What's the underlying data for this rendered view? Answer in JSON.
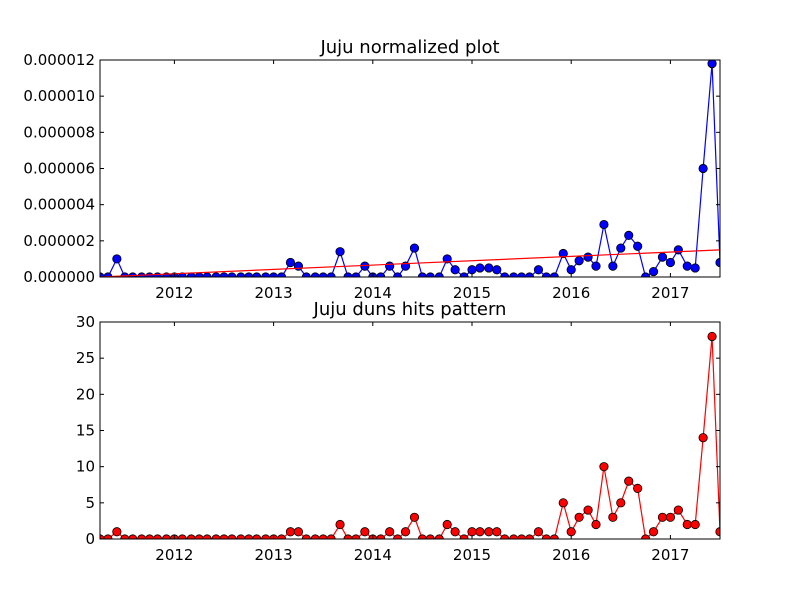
{
  "chart_data": [
    {
      "type": "line",
      "title": "Juju normalized plot",
      "xlabel": "",
      "ylabel": "",
      "xlim": [
        2011.25,
        2017.5
      ],
      "ylim": [
        0,
        1.2e-05
      ],
      "x_ticks": [
        2012,
        2013,
        2014,
        2015,
        2016,
        2017
      ],
      "y_ticks": [
        0,
        2e-06,
        4e-06,
        6e-06,
        8e-06,
        1e-05,
        1.2e-05
      ],
      "x_tick_labels": [
        "2012",
        "2013",
        "2014",
        "2015",
        "2016",
        "2017"
      ],
      "y_tick_labels": [
        "0.000000",
        "0.000002",
        "0.000004",
        "0.000006",
        "0.000008",
        "0.000010",
        "0.000012"
      ],
      "grid": false,
      "series": [
        {
          "color": "#0000ff",
          "marker": "circle",
          "x": [
            2011.25,
            2011.33,
            2011.42,
            2011.5,
            2011.58,
            2011.67,
            2011.75,
            2011.83,
            2011.92,
            2012.0,
            2012.08,
            2012.17,
            2012.25,
            2012.33,
            2012.42,
            2012.5,
            2012.58,
            2012.67,
            2012.75,
            2012.83,
            2012.92,
            2013.0,
            2013.08,
            2013.17,
            2013.25,
            2013.33,
            2013.42,
            2013.5,
            2013.58,
            2013.67,
            2013.75,
            2013.83,
            2013.92,
            2014.0,
            2014.08,
            2014.17,
            2014.25,
            2014.33,
            2014.42,
            2014.5,
            2014.58,
            2014.67,
            2014.75,
            2014.83,
            2014.92,
            2015.0,
            2015.08,
            2015.17,
            2015.25,
            2015.33,
            2015.42,
            2015.5,
            2015.58,
            2015.67,
            2015.75,
            2015.83,
            2015.92,
            2016.0,
            2016.08,
            2016.17,
            2016.25,
            2016.33,
            2016.42,
            2016.5,
            2016.58,
            2016.67,
            2016.75,
            2016.83,
            2016.92,
            2017.0,
            2017.08,
            2017.17,
            2017.25,
            2017.33,
            2017.42,
            2017.5
          ],
          "values": [
            0,
            0,
            1e-06,
            0,
            0,
            0,
            0,
            0,
            0,
            0,
            0,
            0,
            0,
            0,
            0,
            0,
            0,
            0,
            0,
            0,
            0,
            0,
            0,
            8e-07,
            6e-07,
            0,
            0,
            0,
            0,
            1.4e-06,
            0,
            0,
            6e-07,
            0,
            0,
            6e-07,
            0,
            6e-07,
            1.6e-06,
            0,
            0,
            0,
            1e-06,
            4e-07,
            0,
            4e-07,
            5e-07,
            5e-07,
            4e-07,
            0,
            0,
            0,
            0,
            4e-07,
            0,
            0,
            1.3e-06,
            4e-07,
            9e-07,
            1.1e-06,
            6e-07,
            2.9e-06,
            6e-07,
            1.6e-06,
            2.3e-06,
            1.7e-06,
            0,
            3e-07,
            1.1e-06,
            8e-07,
            1.5e-06,
            6e-07,
            5e-07,
            6e-06,
            1.18e-05,
            8e-07
          ]
        },
        {
          "color": "#ff0000",
          "marker": "none",
          "x": [
            2011.25,
            2017.5
          ],
          "values": [
            0,
            1.5e-06
          ]
        }
      ]
    },
    {
      "type": "line",
      "title": "Juju duns hits pattern",
      "xlabel": "",
      "ylabel": "",
      "xlim": [
        2011.25,
        2017.5
      ],
      "ylim": [
        0,
        30
      ],
      "x_ticks": [
        2012,
        2013,
        2014,
        2015,
        2016,
        2017
      ],
      "y_ticks": [
        0,
        5,
        10,
        15,
        20,
        25,
        30
      ],
      "x_tick_labels": [
        "2012",
        "2013",
        "2014",
        "2015",
        "2016",
        "2017"
      ],
      "y_tick_labels": [
        "0",
        "5",
        "10",
        "15",
        "20",
        "25",
        "30"
      ],
      "grid": false,
      "series": [
        {
          "color": "#ff0000",
          "marker": "circle",
          "x": [
            2011.25,
            2011.33,
            2011.42,
            2011.5,
            2011.58,
            2011.67,
            2011.75,
            2011.83,
            2011.92,
            2012.0,
            2012.08,
            2012.17,
            2012.25,
            2012.33,
            2012.42,
            2012.5,
            2012.58,
            2012.67,
            2012.75,
            2012.83,
            2012.92,
            2013.0,
            2013.08,
            2013.17,
            2013.25,
            2013.33,
            2013.42,
            2013.5,
            2013.58,
            2013.67,
            2013.75,
            2013.83,
            2013.92,
            2014.0,
            2014.08,
            2014.17,
            2014.25,
            2014.33,
            2014.42,
            2014.5,
            2014.58,
            2014.67,
            2014.75,
            2014.83,
            2014.92,
            2015.0,
            2015.08,
            2015.17,
            2015.25,
            2015.33,
            2015.42,
            2015.5,
            2015.58,
            2015.67,
            2015.75,
            2015.83,
            2015.92,
            2016.0,
            2016.08,
            2016.17,
            2016.25,
            2016.33,
            2016.42,
            2016.5,
            2016.58,
            2016.67,
            2016.75,
            2016.83,
            2016.92,
            2017.0,
            2017.08,
            2017.17,
            2017.25,
            2017.33,
            2017.42,
            2017.5
          ],
          "values": [
            0,
            0,
            1,
            0,
            0,
            0,
            0,
            0,
            0,
            0,
            0,
            0,
            0,
            0,
            0,
            0,
            0,
            0,
            0,
            0,
            0,
            0,
            0,
            1,
            1,
            0,
            0,
            0,
            0,
            2,
            0,
            0,
            1,
            0,
            0,
            1,
            0,
            1,
            3,
            0,
            0,
            0,
            2,
            1,
            0,
            1,
            1,
            1,
            1,
            0,
            0,
            0,
            0,
            1,
            0,
            0,
            5,
            1,
            3,
            4,
            2,
            10,
            3,
            5,
            8,
            7,
            0,
            1,
            3,
            3,
            4,
            2,
            2,
            14,
            28,
            1
          ]
        }
      ]
    }
  ]
}
